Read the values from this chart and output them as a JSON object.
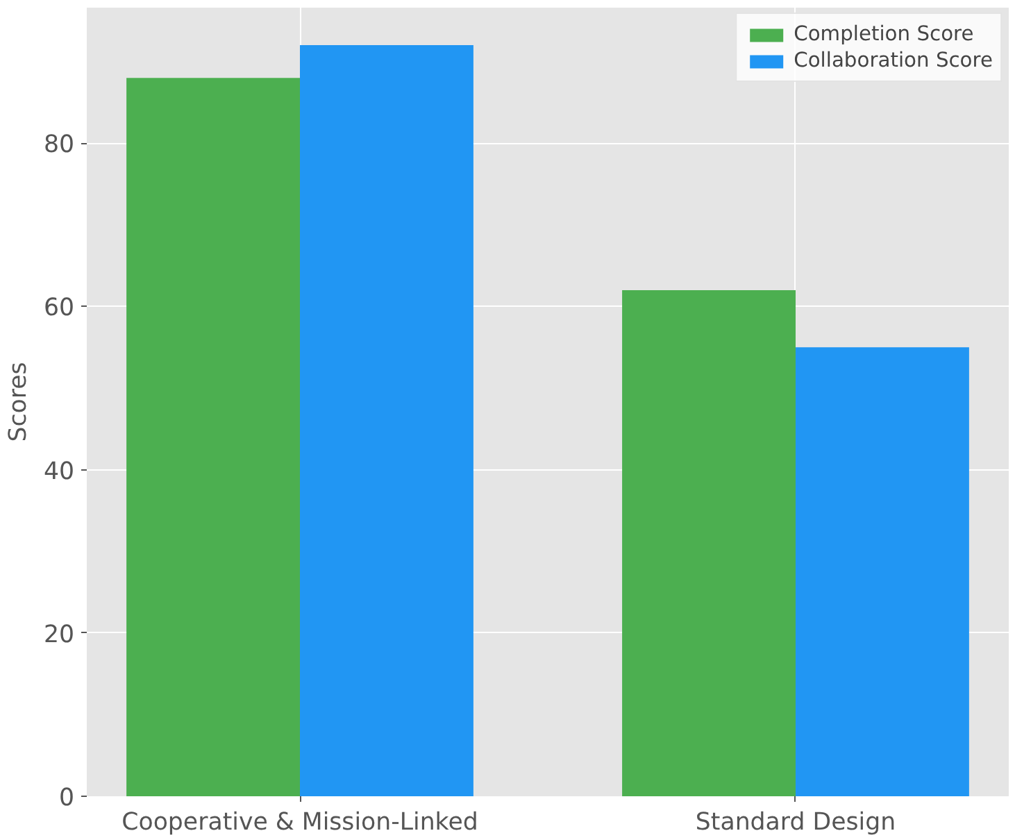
{
  "chart_data": {
    "type": "bar",
    "ylabel": "Scores",
    "categories": [
      "Cooperative & Mission-Linked",
      "Standard Design"
    ],
    "series": [
      {
        "name": "Completion Score",
        "color": "#4caf50",
        "values": [
          88,
          62
        ]
      },
      {
        "name": "Collaboration Score",
        "color": "#2196f3",
        "values": [
          92,
          55
        ]
      }
    ],
    "ylim": [
      0,
      96.6
    ],
    "yticks": [
      0,
      20,
      40,
      60,
      80
    ],
    "grid": true,
    "legend": "top right"
  }
}
